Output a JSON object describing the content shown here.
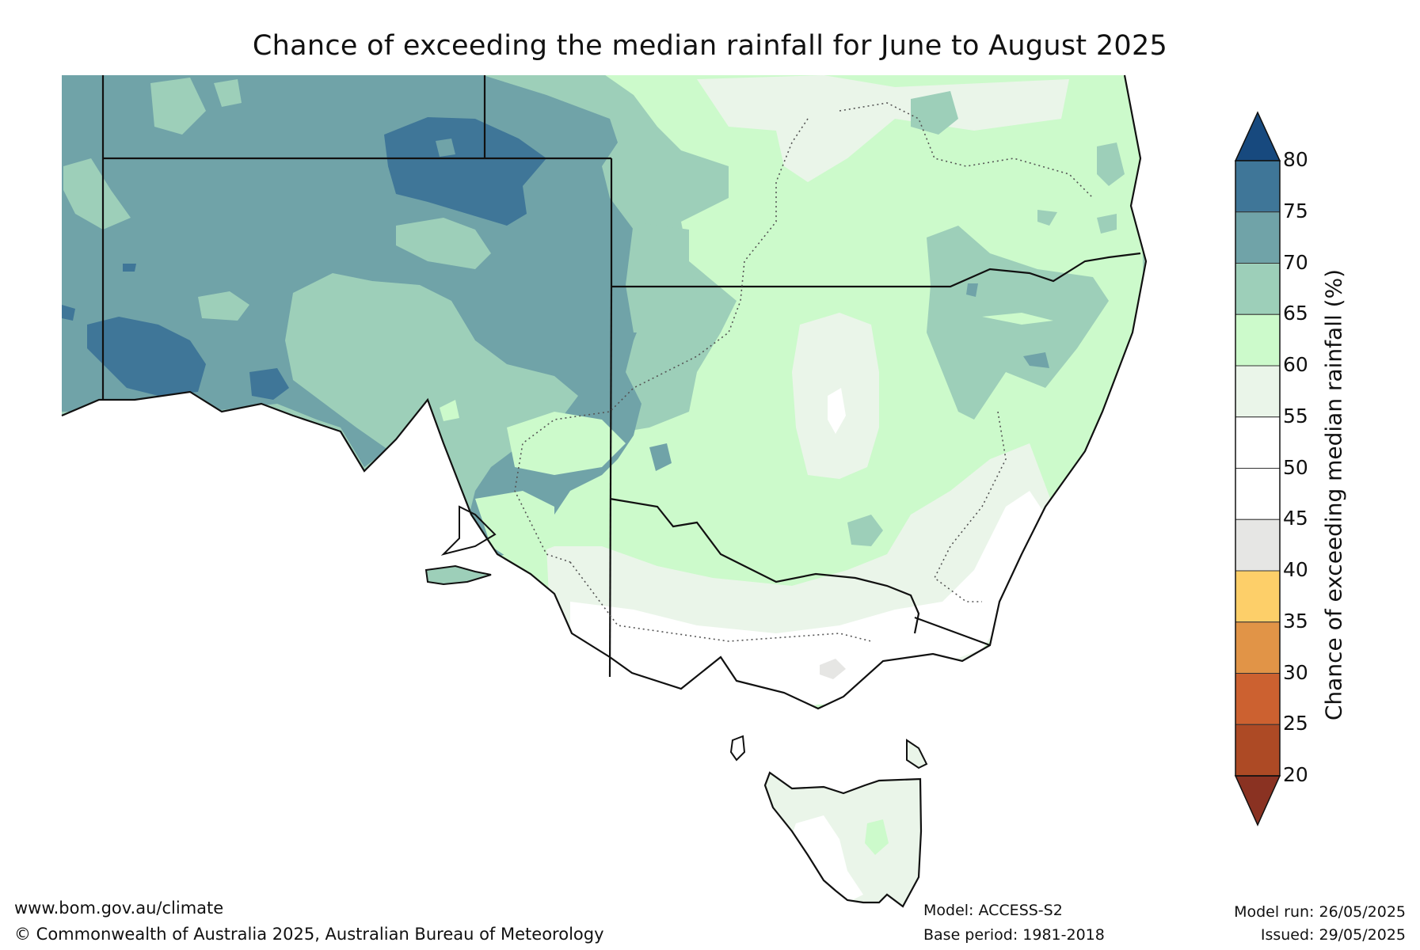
{
  "title": "Chance of exceeding the median rainfall for June to August 2025",
  "map_type": "probability-contour",
  "region": "South-eastern Australia",
  "colorbar": {
    "label": "Chance of exceeding median rainfall (%)",
    "ticks": [
      "80",
      "75",
      "70",
      "65",
      "60",
      "55",
      "50",
      "45",
      "40",
      "35",
      "30",
      "25",
      "20"
    ],
    "bands": [
      {
        "range": "75-80",
        "color": "#3f7698"
      },
      {
        "range": "70-75",
        "color": "#70a3a8"
      },
      {
        "range": "65-70",
        "color": "#9dcfb9"
      },
      {
        "range": "60-65",
        "color": "#ccfacb"
      },
      {
        "range": "55-60",
        "color": "#eaf5e9"
      },
      {
        "range": "50-55",
        "color": "#ffffff"
      },
      {
        "range": "45-50",
        "color": "#ffffff"
      },
      {
        "range": "40-45",
        "color": "#e6e6e4"
      },
      {
        "range": "35-40",
        "color": "#fdcf69"
      },
      {
        "range": "30-35",
        "color": "#e19447"
      },
      {
        "range": "25-30",
        "color": "#cc6130"
      },
      {
        "range": "20-25",
        "color": "#ad4a25"
      }
    ],
    "over_color": "#17497e",
    "under_color": "#8a3222"
  },
  "footer": {
    "url": "www.bom.gov.au/climate",
    "copyright": "© Commonwealth of Australia 2025, Australian Bureau of Meteorology",
    "model": "Model: ACCESS-S2",
    "base_period": "Base period: 1981-2018",
    "model_run": "Model run: 26/05/2025",
    "issued": "Issued: 29/05/2025"
  }
}
